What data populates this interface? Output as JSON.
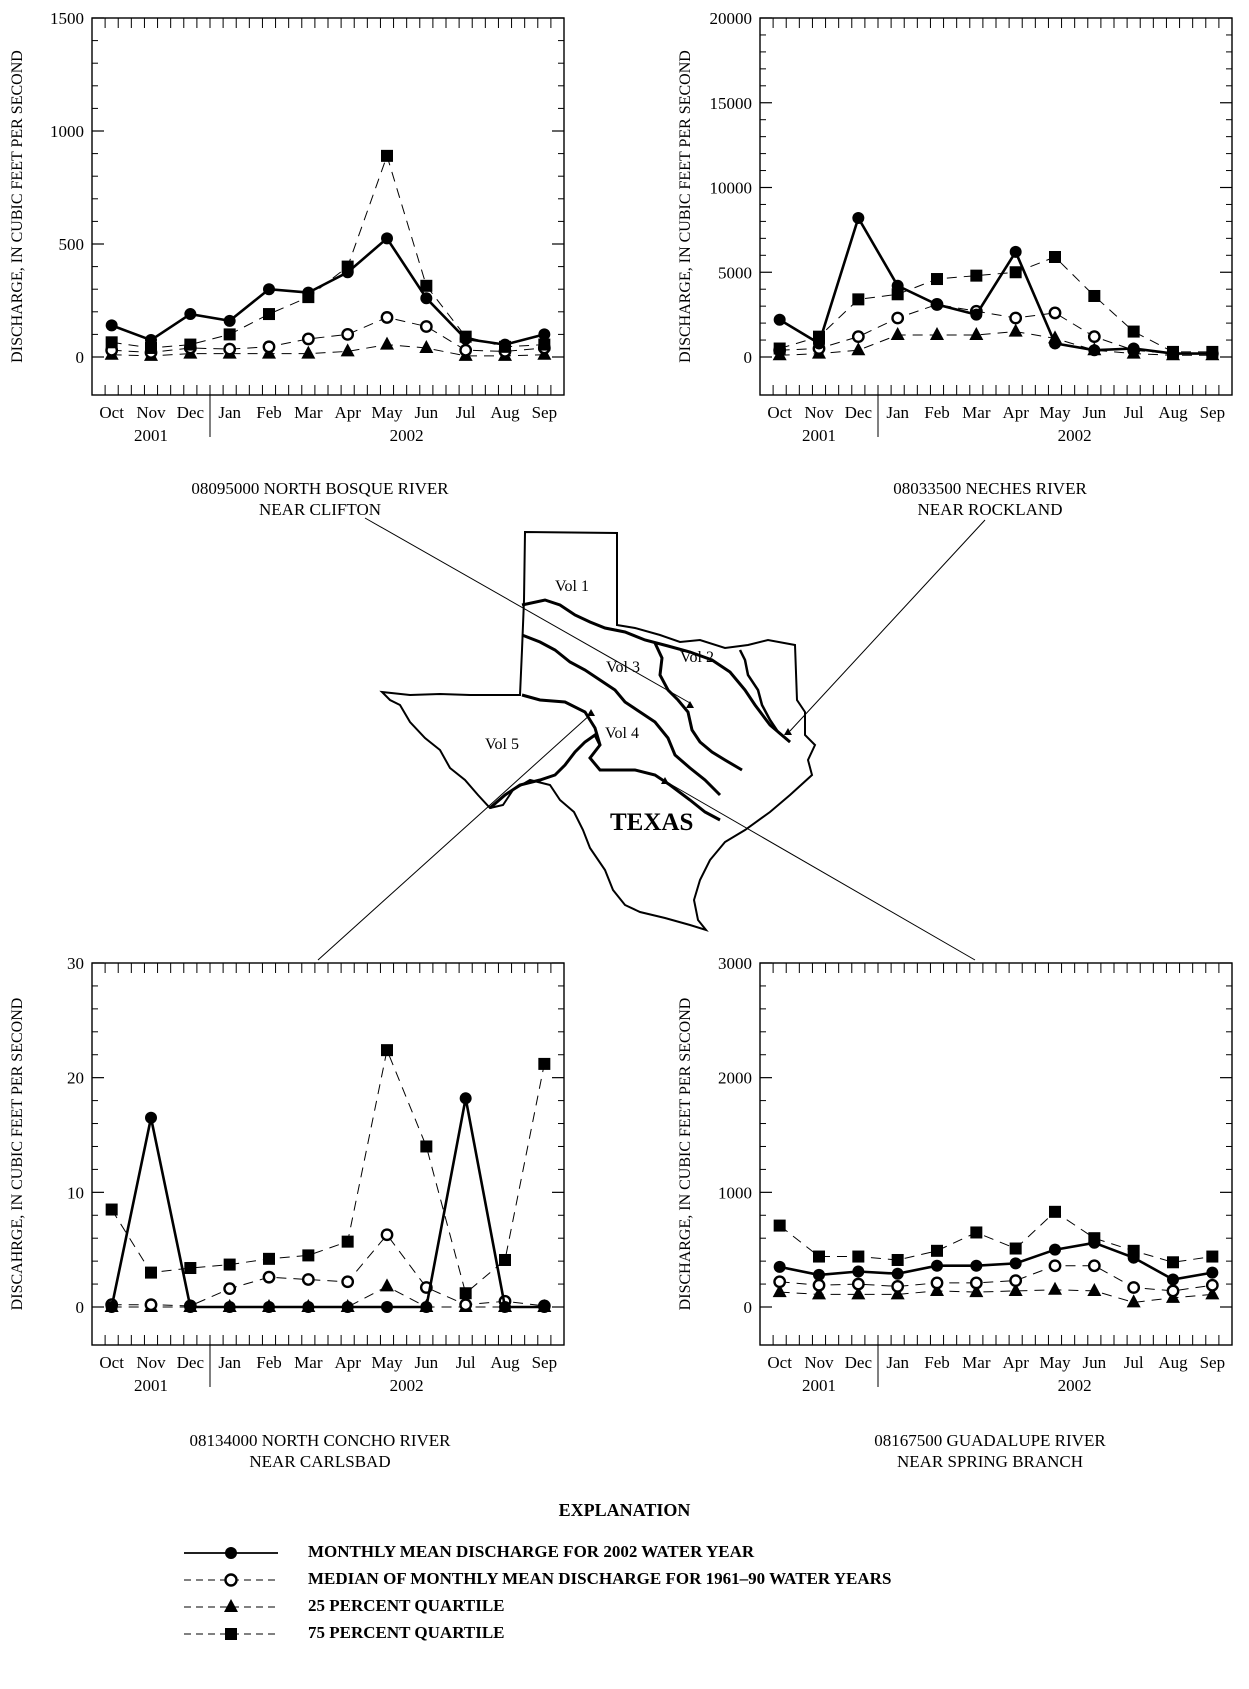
{
  "months": [
    "Oct",
    "Nov",
    "Dec",
    "Jan",
    "Feb",
    "Mar",
    "Apr",
    "May",
    "Jun",
    "Jul",
    "Aug",
    "Sep"
  ],
  "year_labels": [
    "2001",
    "2002"
  ],
  "charts": {
    "ne": {
      "caption": [
        "08033500  NECHES RIVER",
        "NEAR ROCKLAND"
      ]
    }
  },
  "chart_data": [
    {
      "type": "line",
      "station": "08095000 NORTH BOSQUE RIVER NEAR CLIFTON",
      "ylabel": "DISCHARGE, IN CUBIC FEET PER SECOND",
      "ylim": [
        0,
        1500
      ],
      "yticks": [
        0,
        500,
        1000,
        1500
      ],
      "categories": [
        "Oct",
        "Nov",
        "Dec",
        "Jan",
        "Feb",
        "Mar",
        "Apr",
        "May",
        "Jun",
        "Jul",
        "Aug",
        "Sep"
      ],
      "series": [
        {
          "name": "MONTHLY MEAN DISCHARGE FOR 2002 WATER YEAR",
          "values": [
            140,
            75,
            190,
            160,
            300,
            285,
            375,
            525,
            260,
            80,
            55,
            100
          ]
        },
        {
          "name": "MEDIAN OF MONTHLY MEAN DISCHARGE FOR 1961–90 WATER YEARS",
          "values": [
            30,
            20,
            40,
            35,
            45,
            80,
            100,
            175,
            135,
            30,
            25,
            40
          ]
        },
        {
          "name": "25 PERCENT QUARTILE",
          "values": [
            10,
            5,
            15,
            15,
            15,
            15,
            25,
            55,
            40,
            5,
            5,
            10
          ]
        },
        {
          "name": "75 PERCENT QUARTILE",
          "values": [
            65,
            40,
            55,
            100,
            190,
            265,
            400,
            890,
            315,
            90,
            45,
            55
          ]
        }
      ]
    },
    {
      "type": "line",
      "station": "08033500 NECHES RIVER NEAR ROCKLAND",
      "ylabel": "DISCHARGE, IN CUBIC FEET PER SECOND",
      "ylim": [
        0,
        20000
      ],
      "yticks": [
        0,
        5000,
        10000,
        15000,
        20000
      ],
      "categories": [
        "Oct",
        "Nov",
        "Dec",
        "Jan",
        "Feb",
        "Mar",
        "Apr",
        "May",
        "Jun",
        "Jul",
        "Aug",
        "Sep"
      ],
      "series": [
        {
          "name": "MONTHLY MEAN DISCHARGE FOR 2002 WATER YEAR",
          "values": [
            2200,
            800,
            8200,
            4200,
            3100,
            2500,
            6200,
            800,
            400,
            500,
            200,
            200
          ]
        },
        {
          "name": "MEDIAN OF MONTHLY MEAN DISCHARGE FOR 1961–90 WATER YEARS",
          "values": [
            400,
            500,
            1200,
            2300,
            3100,
            2700,
            2300,
            2600,
            1200,
            400,
            200,
            200
          ]
        },
        {
          "name": "25 PERCENT QUARTILE",
          "values": [
            100,
            200,
            400,
            1300,
            1300,
            1300,
            1500,
            1100,
            400,
            200,
            100,
            100
          ]
        },
        {
          "name": "75 PERCENT QUARTILE",
          "values": [
            500,
            1200,
            3400,
            3700,
            4600,
            4800,
            5000,
            5900,
            3600,
            1500,
            300,
            300
          ]
        }
      ]
    },
    {
      "type": "line",
      "station": "08134000 NORTH CONCHO RIVER NEAR CARLSBAD",
      "ylabel": "DISCAHRGE, IN CUBIC FEET PER SECOND",
      "ylim": [
        0,
        30
      ],
      "yticks": [
        0,
        10,
        20,
        30
      ],
      "categories": [
        "Oct",
        "Nov",
        "Dec",
        "Jan",
        "Feb",
        "Mar",
        "Apr",
        "May",
        "Jun",
        "Jul",
        "Aug",
        "Sep"
      ],
      "series": [
        {
          "name": "MONTHLY MEAN DISCHARGE FOR 2002 WATER YEAR",
          "values": [
            0,
            16.5,
            0,
            0,
            0,
            0,
            0,
            0,
            0,
            18.2,
            0,
            0
          ]
        },
        {
          "name": "MEDIAN OF MONTHLY MEAN DISCHARGE FOR 1961–90 WATER YEARS",
          "values": [
            0.2,
            0.2,
            0.1,
            1.6,
            2.6,
            2.4,
            2.2,
            6.3,
            1.7,
            0.2,
            0.5,
            0.1
          ]
        },
        {
          "name": "25 PERCENT QUARTILE",
          "values": [
            0,
            0,
            0,
            0,
            0,
            0,
            0,
            1.8,
            0,
            0,
            0,
            0
          ]
        },
        {
          "name": "75 PERCENT QUARTILE",
          "values": [
            8.5,
            3.0,
            3.4,
            3.7,
            4.2,
            4.5,
            5.7,
            22.4,
            14.0,
            1.2,
            4.1,
            21.2
          ]
        }
      ]
    },
    {
      "type": "line",
      "station": "08167500 GUADALUPE RIVER NEAR SPRING BRANCH",
      "ylabel": "DISCHARGE, IN CUBIC FEET PER SECOND",
      "ylim": [
        0,
        3000
      ],
      "yticks": [
        0,
        1000,
        2000,
        3000
      ],
      "categories": [
        "Oct",
        "Nov",
        "Dec",
        "Jan",
        "Feb",
        "Mar",
        "Apr",
        "May",
        "Jun",
        "Jul",
        "Aug",
        "Sep"
      ],
      "series": [
        {
          "name": "MONTHLY MEAN DISCHARGE FOR 2002 WATER YEAR",
          "values": [
            350,
            280,
            310,
            290,
            360,
            360,
            380,
            500,
            560,
            430,
            240,
            300
          ]
        },
        {
          "name": "MEDIAN OF MONTHLY MEAN DISCHARGE FOR 1961–90 WATER YEARS",
          "values": [
            220,
            190,
            200,
            180,
            210,
            210,
            230,
            360,
            360,
            170,
            140,
            190
          ]
        },
        {
          "name": "25 PERCENT QUARTILE",
          "values": [
            130,
            110,
            110,
            110,
            140,
            130,
            140,
            150,
            140,
            40,
            80,
            110
          ]
        },
        {
          "name": "75 PERCENT QUARTILE",
          "values": [
            710,
            440,
            440,
            410,
            490,
            650,
            510,
            830,
            600,
            490,
            390,
            440
          ]
        }
      ]
    }
  ],
  "captions": {
    "nw": [
      "08095000  NORTH BOSQUE RIVER",
      "NEAR CLIFTON"
    ],
    "ne": [
      "08033500  NECHES RIVER",
      "NEAR ROCKLAND"
    ],
    "sw": [
      "08134000  NORTH CONCHO RIVER",
      "NEAR CARLSBAD"
    ],
    "se": [
      "08167500  GUADALUPE RIVER",
      "NEAR SPRING BRANCH"
    ]
  },
  "map": {
    "state_label": "TEXAS",
    "volumes": [
      "Vol 1",
      "Vol 2",
      "Vol 3",
      "Vol 4",
      "Vol 5"
    ]
  },
  "legend": {
    "title": "EXPLANATION",
    "items": [
      {
        "label": "MONTHLY MEAN DISCHARGE FOR 2002 WATER YEAR",
        "line": "solid",
        "marker": "filled-circle"
      },
      {
        "label": "MEDIAN OF MONTHLY MEAN DISCHARGE FOR 1961–90 WATER YEARS",
        "line": "dashed",
        "marker": "open-circle"
      },
      {
        "label": "25 PERCENT QUARTILE",
        "line": "dashed",
        "marker": "filled-triangle"
      },
      {
        "label": "75 PERCENT QUARTILE",
        "line": "dashed",
        "marker": "filled-square"
      }
    ]
  }
}
